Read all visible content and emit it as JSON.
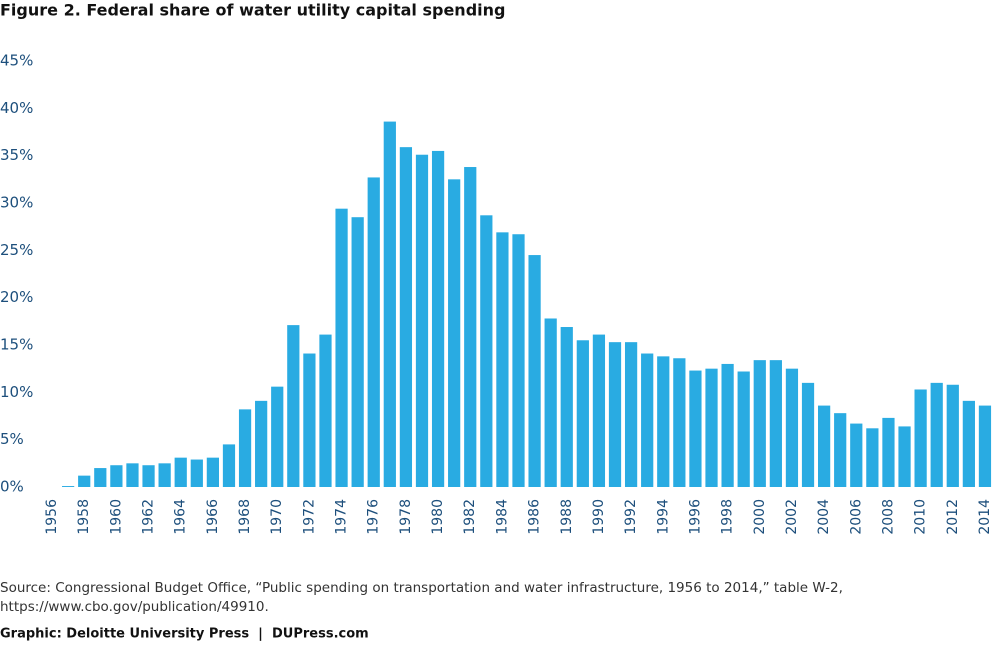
{
  "chart_data": {
    "type": "bar",
    "title": "Figure 2. Federal share of water utility capital spending",
    "categories": [
      "1956",
      null,
      "1958",
      null,
      "1960",
      null,
      "1962",
      null,
      "1964",
      null,
      "1966",
      null,
      "1968",
      null,
      "1970",
      null,
      "1972",
      null,
      "1974",
      null,
      "1976",
      null,
      "1978",
      null,
      "1980",
      null,
      "1982",
      null,
      "1984",
      null,
      "1986",
      null,
      "1988",
      null,
      "1990",
      null,
      "1992",
      null,
      "1994",
      null,
      "1996",
      null,
      "1998",
      null,
      "2000",
      null,
      "2002",
      null,
      "2004",
      null,
      "2006",
      null,
      "2008",
      null,
      "2010",
      null,
      "2012",
      null,
      "2014"
    ],
    "values": [
      0,
      0.1,
      1.2,
      2.0,
      2.3,
      2.5,
      2.3,
      2.5,
      3.1,
      2.9,
      3.1,
      4.5,
      8.2,
      9.1,
      10.6,
      17.1,
      14.1,
      16.1,
      29.4,
      28.5,
      32.7,
      38.6,
      35.9,
      35.1,
      35.5,
      32.5,
      33.8,
      28.7,
      26.9,
      26.7,
      24.5,
      17.8,
      16.9,
      15.5,
      16.1,
      15.3,
      15.3,
      14.1,
      13.8,
      13.6,
      12.3,
      12.5,
      13.0,
      12.2,
      13.4,
      13.4,
      12.5,
      11.0,
      8.6,
      7.8,
      6.7,
      6.2,
      7.3,
      6.4,
      10.3,
      11.0,
      10.8,
      9.1,
      8.6
    ],
    "color": "#29abe2",
    "ylim": [
      0,
      45
    ],
    "yticks": [
      {
        "value": 0,
        "label": "0%"
      },
      {
        "value": 5,
        "label": "5%"
      },
      {
        "value": 10,
        "label": "10%"
      },
      {
        "value": 15,
        "label": "15%"
      },
      {
        "value": 20,
        "label": "20%"
      },
      {
        "value": 25,
        "label": "25%"
      },
      {
        "value": 30,
        "label": "30%"
      },
      {
        "value": 35,
        "label": "35%"
      },
      {
        "value": 40,
        "label": "40%"
      },
      {
        "value": 45,
        "label": "45%"
      }
    ],
    "grid": false,
    "source": [
      "Source: Congressional Budget Office, “Public spending on transportation and water infrastructure, 1956 to 2014,” table W-2,",
      "https://www.cbo.gov/publication/49910."
    ],
    "credit": "Graphic: Deloitte University Press  |  DUPress.com"
  }
}
